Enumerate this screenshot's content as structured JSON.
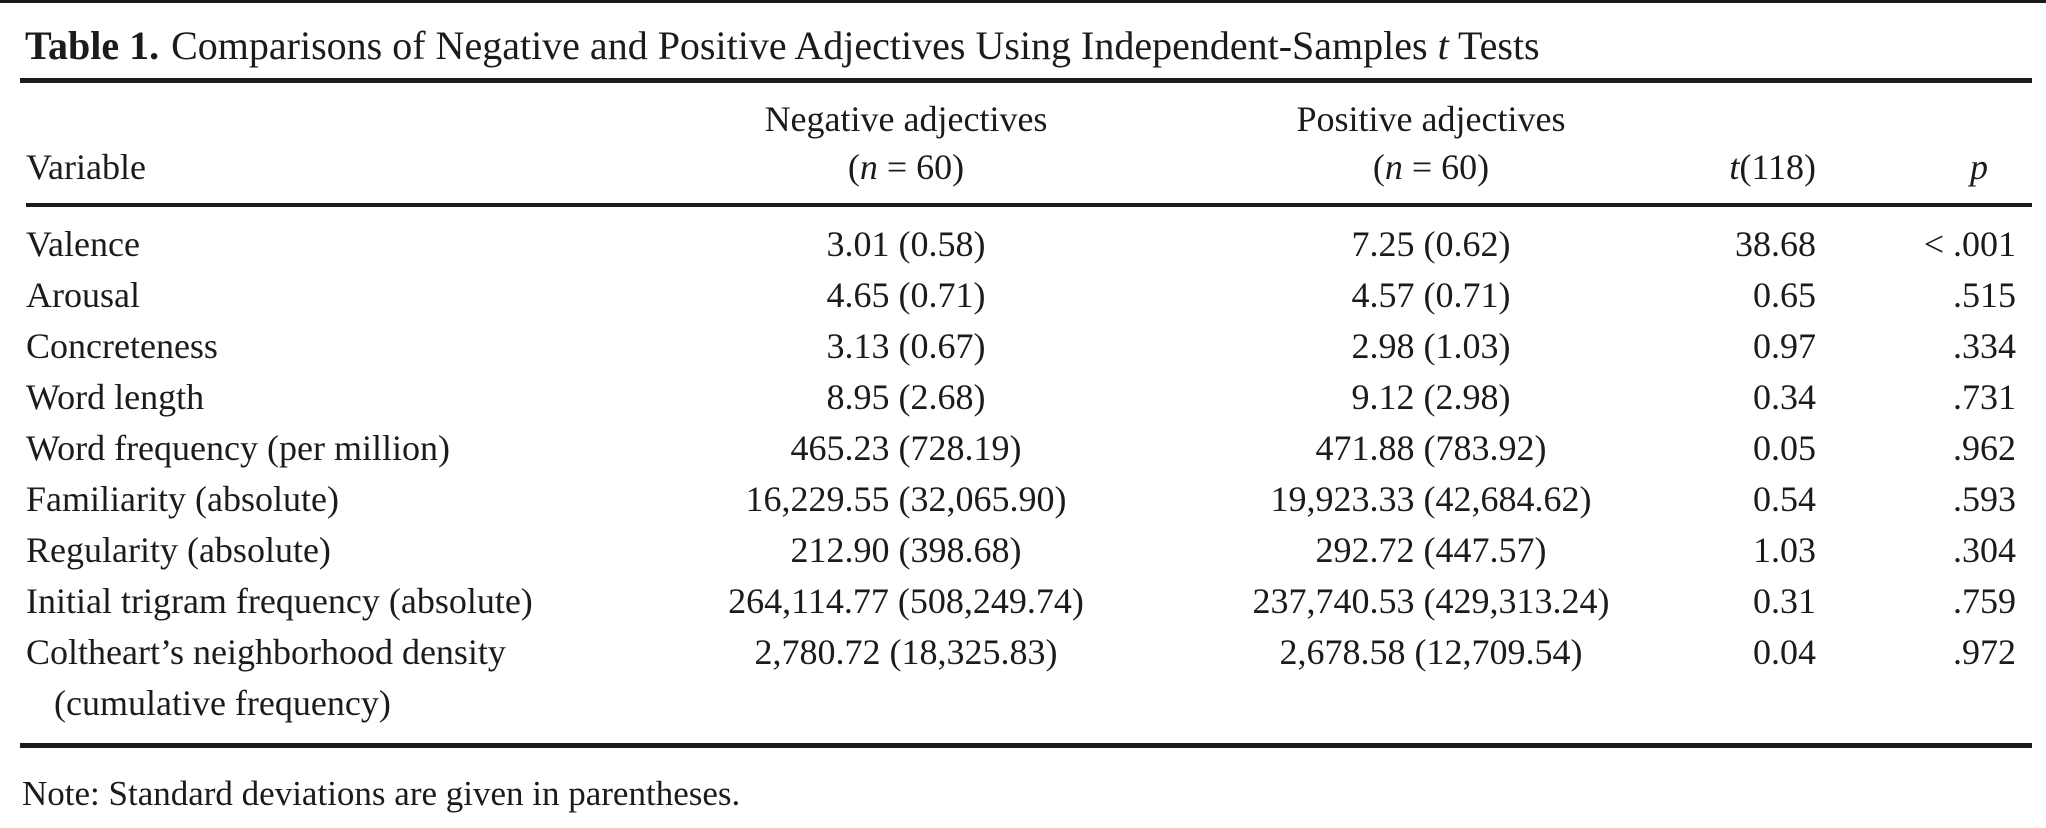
{
  "title": {
    "label": "Table 1.",
    "text_before_t": "Comparisons of Negative and Positive Adjectives Using Independent-Samples",
    "t": "t",
    "text_after_t": "Tests"
  },
  "header": {
    "variable": "Variable",
    "negative": {
      "line1": "Negative adjectives",
      "open": "(",
      "n": "n",
      "rest": " = 60)"
    },
    "positive": {
      "line1": "Positive adjectives",
      "open": "(",
      "n": "n",
      "rest": " = 60)"
    },
    "t": {
      "italic": "t",
      "rest": "(118)"
    },
    "p": {
      "italic": "p"
    }
  },
  "rows": [
    {
      "variable": "Valence",
      "negative": "3.01 (0.58)",
      "positive": "7.25 (0.62)",
      "t": "38.68",
      "p": "< .001"
    },
    {
      "variable": "Arousal",
      "negative": "4.65 (0.71)",
      "positive": "4.57 (0.71)",
      "t": "0.65",
      "p": ".515"
    },
    {
      "variable": "Concreteness",
      "negative": "3.13 (0.67)",
      "positive": "2.98 (1.03)",
      "t": "0.97",
      "p": ".334"
    },
    {
      "variable": "Word length",
      "negative": "8.95 (2.68)",
      "positive": "9.12 (2.98)",
      "t": "0.34",
      "p": ".731"
    },
    {
      "variable": "Word frequency (per million)",
      "negative": "465.23 (728.19)",
      "positive": "471.88 (783.92)",
      "t": "0.05",
      "p": ".962"
    },
    {
      "variable": "Familiarity (absolute)",
      "negative": "16,229.55 (32,065.90)",
      "positive": "19,923.33 (42,684.62)",
      "t": "0.54",
      "p": ".593"
    },
    {
      "variable": "Regularity (absolute)",
      "negative": "212.90 (398.68)",
      "positive": "292.72 (447.57)",
      "t": "1.03",
      "p": ".304"
    },
    {
      "variable": "Initial trigram frequency (absolute)",
      "negative": "264,114.77 (508,249.74)",
      "positive": "237,740.53 (429,313.24)",
      "t": "0.31",
      "p": ".759"
    },
    {
      "variable": "Coltheart’s neighborhood density",
      "variable_line2": "(cumulative frequency)",
      "negative": "2,780.72 (18,325.83)",
      "positive": "2,678.58 (12,709.54)",
      "t": "0.04",
      "p": ".972"
    }
  ],
  "note": "Note: Standard deviations are given in parentheses.",
  "colors": {
    "text": "#1b1b1b",
    "rule": "#1c1c1c",
    "background": "#ffffff"
  }
}
